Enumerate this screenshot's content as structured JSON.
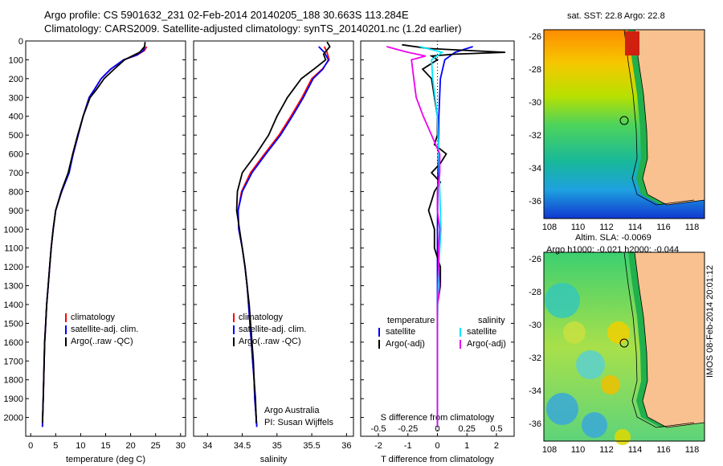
{
  "header": {
    "line1": "Argo profile: CS 5901632_231 02-Feb-2014 20140205_188 30.663S 113.284E",
    "line2": "Climatology: CARS2009. Satellite-adjusted climatology: synTS_20140201.nc (1.2d earlier)"
  },
  "map_top": {
    "title": "sat. SST: 22.8 Argo: 22.8",
    "xticks": [
      "108",
      "110",
      "112",
      "114",
      "116",
      "118"
    ],
    "yticks": [
      "-26",
      "-28",
      "-30",
      "-32",
      "-34",
      "-36"
    ]
  },
  "map_bottom": {
    "title1": "Altim. SLA: -0.0069",
    "title2": "Argo h1000: -0.021 h2000: -0.044",
    "xticks": [
      "108",
      "110",
      "112",
      "114",
      "116",
      "118"
    ],
    "yticks": [
      "-26",
      "-28",
      "-30",
      "-32",
      "-34",
      "-36"
    ]
  },
  "side_label": "IMOS 08-Feb-2014 20:01:12",
  "colors": {
    "climatology": "#ff0000",
    "satellite": "#0000ff",
    "argo": "#000000",
    "sat_salinity": "#00e5ff",
    "argo_adj_salinity": "#ee00ee",
    "land": "#f9c18f"
  },
  "chart_data": [
    {
      "type": "line",
      "panel": "temperature",
      "xlabel": "temperature (deg C)",
      "ylabel": "",
      "xlim": [
        -1,
        31
      ],
      "ylim": [
        2100,
        0
      ],
      "xticks": [
        "0",
        "5",
        "10",
        "15",
        "20",
        "25",
        "30"
      ],
      "yticks": [
        "0",
        "100",
        "200",
        "300",
        "400",
        "500",
        "600",
        "700",
        "800",
        "900",
        "1000",
        "1100",
        "1200",
        "1300",
        "1400",
        "1500",
        "1600",
        "1700",
        "1800",
        "1900",
        "2000"
      ],
      "legend": [
        "climatology",
        "satellite-adj. clim.",
        "Argo(..raw -QC)"
      ],
      "series": [
        {
          "name": "climatology",
          "points": [
            [
              23.2,
              30
            ],
            [
              22.8,
              50
            ],
            [
              21.3,
              75
            ],
            [
              18.6,
              100
            ],
            [
              16,
              150
            ],
            [
              14.1,
              200
            ],
            [
              12.7,
              260
            ],
            [
              11.7,
              300
            ],
            [
              10.5,
              400
            ],
            [
              9.5,
              500
            ],
            [
              8.5,
              600
            ],
            [
              7.6,
              700
            ],
            [
              6.2,
              800
            ],
            [
              5,
              900
            ],
            [
              4.5,
              1000
            ],
            [
              4.1,
              1100
            ],
            [
              3.8,
              1200
            ],
            [
              3.5,
              1300
            ],
            [
              3.2,
              1400
            ],
            [
              3,
              1500
            ],
            [
              2.8,
              1600
            ],
            [
              2.7,
              1700
            ],
            [
              2.6,
              1800
            ],
            [
              2.5,
              1900
            ],
            [
              2.4,
              2000
            ],
            [
              2.35,
              2050
            ]
          ]
        },
        {
          "name": "satellite-adj. clim.",
          "points": [
            [
              22.8,
              30
            ],
            [
              22.6,
              50
            ],
            [
              21.2,
              75
            ],
            [
              18.6,
              100
            ],
            [
              16,
              150
            ],
            [
              14.1,
              200
            ],
            [
              12.7,
              260
            ],
            [
              11.7,
              300
            ],
            [
              10.5,
              400
            ],
            [
              9.5,
              500
            ],
            [
              8.5,
              600
            ],
            [
              7.7,
              700
            ],
            [
              6.2,
              800
            ],
            [
              5,
              900
            ],
            [
              4.5,
              1000
            ],
            [
              4.1,
              1100
            ],
            [
              3.8,
              1200
            ],
            [
              3.5,
              1300
            ],
            [
              3.2,
              1400
            ],
            [
              3,
              1500
            ],
            [
              2.8,
              1600
            ],
            [
              2.7,
              1700
            ],
            [
              2.6,
              1800
            ],
            [
              2.5,
              1900
            ],
            [
              2.4,
              2000
            ],
            [
              2.35,
              2050
            ]
          ]
        },
        {
          "name": "Argo(..raw -QC)",
          "points": [
            [
              22.9,
              5
            ],
            [
              22.8,
              30
            ],
            [
              21.8,
              60
            ],
            [
              18.8,
              100
            ],
            [
              16.7,
              150
            ],
            [
              14.7,
              200
            ],
            [
              13.1,
              260
            ],
            [
              11.9,
              300
            ],
            [
              10.5,
              400
            ],
            [
              9.4,
              500
            ],
            [
              8.4,
              600
            ],
            [
              7.5,
              700
            ],
            [
              6.1,
              800
            ],
            [
              5,
              900
            ],
            [
              4.5,
              1000
            ],
            [
              4.1,
              1100
            ],
            [
              3.8,
              1200
            ],
            [
              3.5,
              1300
            ],
            [
              3.2,
              1400
            ],
            [
              3,
              1500
            ],
            [
              2.8,
              1600
            ],
            [
              2.7,
              1700
            ],
            [
              2.6,
              1800
            ],
            [
              2.5,
              1900
            ],
            [
              2.4,
              2000
            ],
            [
              2.35,
              2030
            ]
          ]
        }
      ]
    },
    {
      "type": "line",
      "panel": "salinity",
      "xlabel": "salinity",
      "xlim": [
        33.8,
        36.1
      ],
      "ylim": [
        2100,
        0
      ],
      "xticks": [
        "34",
        "34.5",
        "35",
        "35.5",
        "36"
      ],
      "legend": [
        "climatology",
        "satellite-adj. clim.",
        "Argo(..raw -QC)"
      ],
      "annotation": [
        "Argo Australia",
        "PI: Susan Wijffels"
      ],
      "series": [
        {
          "name": "climatology",
          "points": [
            [
              35.68,
              30
            ],
            [
              35.72,
              60
            ],
            [
              35.75,
              100
            ],
            [
              35.65,
              150
            ],
            [
              35.5,
              200
            ],
            [
              35.36,
              300
            ],
            [
              35.2,
              400
            ],
            [
              35.03,
              500
            ],
            [
              34.82,
              600
            ],
            [
              34.62,
              700
            ],
            [
              34.49,
              800
            ],
            [
              34.44,
              900
            ],
            [
              34.45,
              1000
            ],
            [
              34.5,
              1100
            ],
            [
              34.54,
              1200
            ],
            [
              34.57,
              1300
            ],
            [
              34.59,
              1400
            ],
            [
              34.61,
              1500
            ],
            [
              34.63,
              1600
            ],
            [
              34.65,
              1700
            ],
            [
              34.67,
              1800
            ],
            [
              34.68,
              1900
            ],
            [
              34.7,
              2000
            ],
            [
              34.71,
              2050
            ]
          ]
        },
        {
          "name": "satellite-adj. clim.",
          "points": [
            [
              35.6,
              30
            ],
            [
              35.68,
              60
            ],
            [
              35.74,
              100
            ],
            [
              35.66,
              150
            ],
            [
              35.52,
              200
            ],
            [
              35.38,
              300
            ],
            [
              35.22,
              400
            ],
            [
              35.05,
              500
            ],
            [
              34.84,
              600
            ],
            [
              34.64,
              700
            ],
            [
              34.5,
              800
            ],
            [
              34.44,
              900
            ],
            [
              34.45,
              1000
            ],
            [
              34.5,
              1100
            ],
            [
              34.54,
              1200
            ],
            [
              34.57,
              1300
            ],
            [
              34.59,
              1400
            ],
            [
              34.61,
              1500
            ],
            [
              34.63,
              1600
            ],
            [
              34.65,
              1700
            ],
            [
              34.67,
              1800
            ],
            [
              34.68,
              1900
            ],
            [
              34.7,
              2000
            ],
            [
              34.71,
              2050
            ]
          ]
        },
        {
          "name": "Argo(..raw -QC)",
          "points": [
            [
              35.72,
              5
            ],
            [
              35.76,
              30
            ],
            [
              35.67,
              70
            ],
            [
              35.7,
              100
            ],
            [
              35.53,
              150
            ],
            [
              35.35,
              200
            ],
            [
              35.15,
              300
            ],
            [
              35.0,
              400
            ],
            [
              34.88,
              500
            ],
            [
              34.7,
              600
            ],
            [
              34.5,
              700
            ],
            [
              34.43,
              800
            ],
            [
              34.42,
              900
            ],
            [
              34.46,
              1000
            ],
            [
              34.5,
              1100
            ],
            [
              34.54,
              1200
            ],
            [
              34.57,
              1300
            ],
            [
              34.6,
              1400
            ],
            [
              34.62,
              1500
            ],
            [
              34.64,
              1600
            ],
            [
              34.66,
              1700
            ],
            [
              34.67,
              1800
            ],
            [
              34.69,
              1900
            ],
            [
              34.7,
              2000
            ],
            [
              34.7,
              2030
            ]
          ]
        }
      ]
    },
    {
      "type": "line",
      "panel": "difference",
      "xlabel": "T difference from climatology",
      "xlabel_top": "S difference from climatology",
      "xlim": [
        -2.6,
        2.6
      ],
      "ylim": [
        2100,
        0
      ],
      "xticks_T": [
        "-2",
        "-1",
        "0",
        "1",
        "2"
      ],
      "xticks_S": [
        "-0.5",
        "-0.25",
        "0",
        "0.25",
        "0.5"
      ],
      "legend": {
        "temperature": [
          "satellite",
          "Argo(-adj)"
        ],
        "salinity": [
          "satellite",
          "Argo(-adj)"
        ]
      },
      "series": [
        {
          "name": "temperature satellite",
          "points": [
            [
              1.2,
              30
            ],
            [
              0.6,
              60
            ],
            [
              0.25,
              100
            ],
            [
              0.1,
              200
            ],
            [
              0.05,
              400
            ],
            [
              0.02,
              700
            ],
            [
              0,
              1000
            ],
            [
              0,
              1500
            ],
            [
              0,
              2050
            ]
          ]
        },
        {
          "name": "temperature Argo(-adj)",
          "points": [
            [
              -1.2,
              20
            ],
            [
              -0.3,
              40
            ],
            [
              2.3,
              60
            ],
            [
              0.6,
              70
            ],
            [
              -0.2,
              80
            ],
            [
              0,
              100
            ],
            [
              -0.5,
              150
            ],
            [
              -0.2,
              200
            ],
            [
              -0.1,
              300
            ],
            [
              0,
              400
            ],
            [
              0,
              500
            ],
            [
              -0.1,
              550
            ],
            [
              0.3,
              600
            ],
            [
              0.1,
              650
            ],
            [
              -0.2,
              700
            ],
            [
              0.1,
              750
            ],
            [
              -0.1,
              800
            ],
            [
              -0.2,
              850
            ],
            [
              -0.3,
              900
            ],
            [
              -0.2,
              950
            ],
            [
              -0.1,
              1000
            ],
            [
              -0.1,
              1100
            ],
            [
              0.1,
              1200
            ],
            [
              0.1,
              1300
            ],
            [
              0,
              1400
            ],
            [
              0,
              1500
            ],
            [
              0,
              2050
            ]
          ]
        },
        {
          "name": "salinity satellite",
          "points": [
            [
              -0.15,
              30
            ],
            [
              0.04,
              60
            ],
            [
              -0.05,
              100
            ],
            [
              -0.04,
              200
            ],
            [
              0,
              400
            ],
            [
              0.02,
              800
            ],
            [
              0.03,
              1000
            ],
            [
              0.01,
              1200
            ],
            [
              0,
              1500
            ],
            [
              0,
              2050
            ]
          ]
        },
        {
          "name": "salinity Argo(-adj)",
          "points": [
            [
              -0.43,
              30
            ],
            [
              -0.25,
              60
            ],
            [
              -0.1,
              80
            ],
            [
              -0.22,
              100
            ],
            [
              -0.2,
              200
            ],
            [
              -0.18,
              300
            ],
            [
              -0.12,
              400
            ],
            [
              -0.05,
              500
            ],
            [
              0.02,
              600
            ],
            [
              0.02,
              700
            ],
            [
              0,
              800
            ],
            [
              0,
              900
            ],
            [
              0.02,
              1000
            ],
            [
              0.01,
              1100
            ],
            [
              0.01,
              1200
            ],
            [
              0.02,
              1300
            ],
            [
              0,
              1400
            ],
            [
              0,
              1500
            ],
            [
              0,
              2050
            ]
          ]
        }
      ]
    }
  ]
}
